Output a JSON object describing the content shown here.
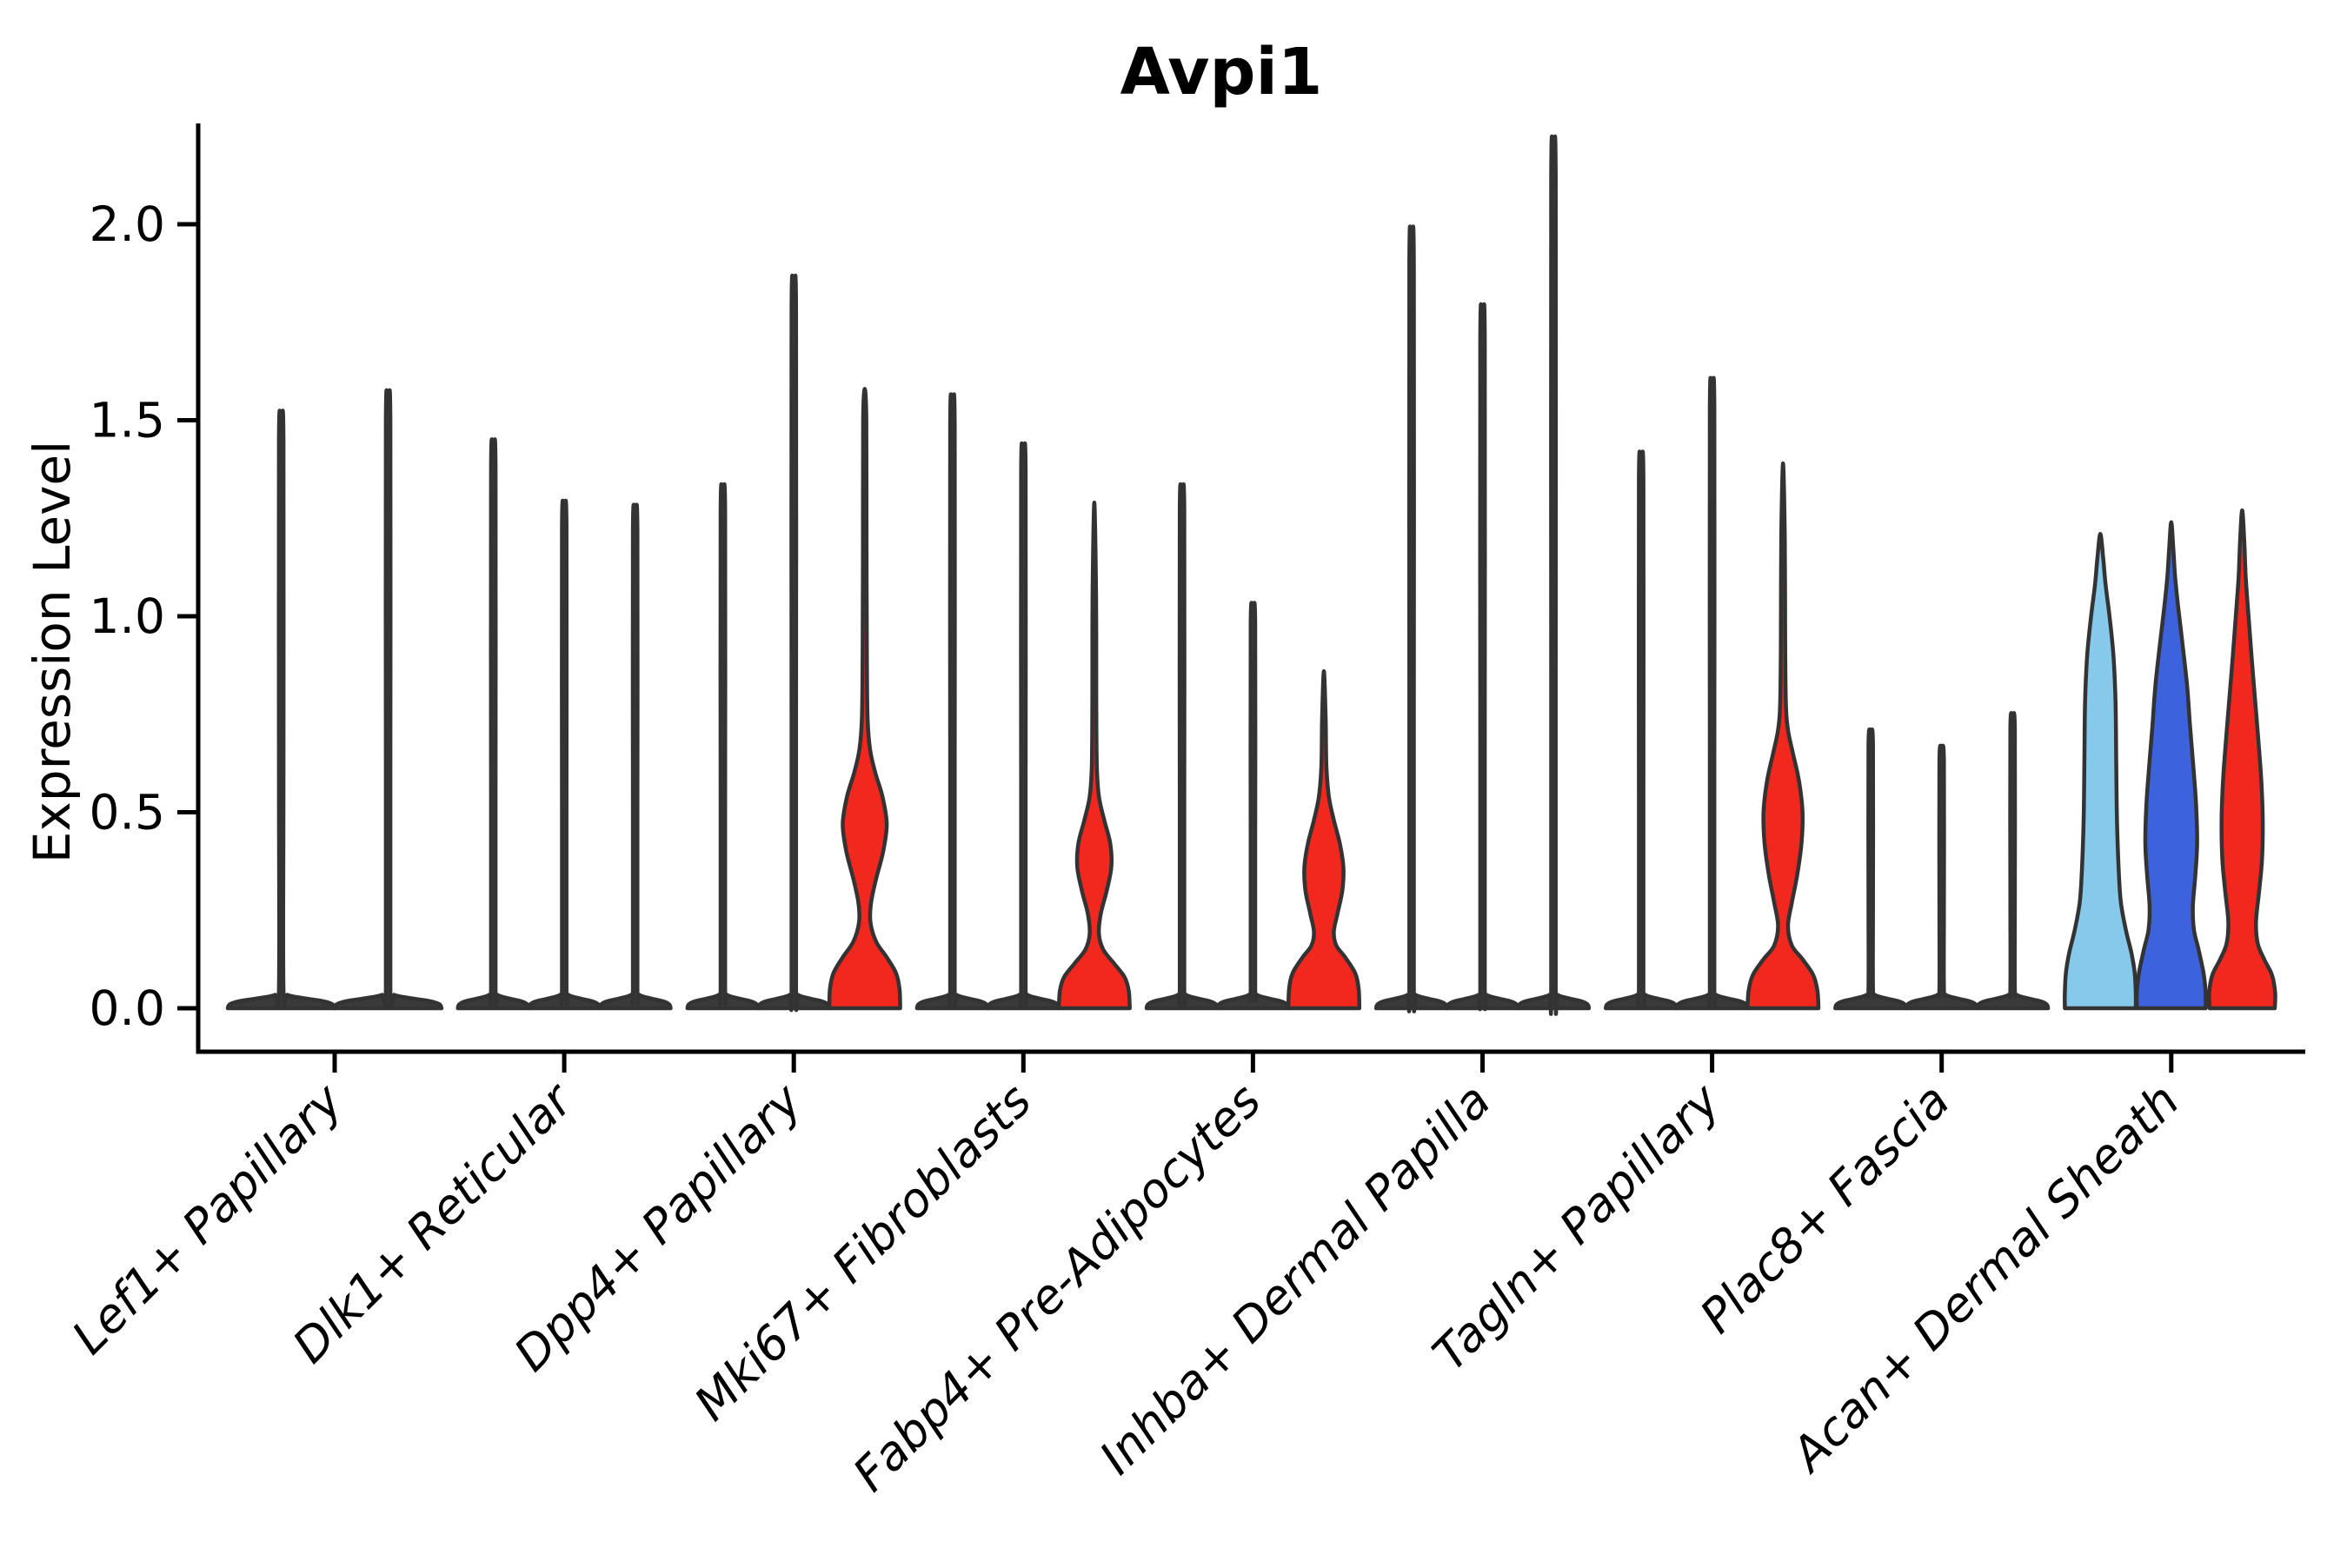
{
  "chart_data": {
    "type": "violin",
    "title": "Avpi1",
    "ylabel": "Expression Level",
    "xlabel": "",
    "grid": false,
    "legend": "none",
    "ylim": [
      -0.11,
      2.26
    ],
    "yticks": [
      {
        "label": "0.0",
        "value": 0.0
      },
      {
        "label": "0.5",
        "value": 0.5
      },
      {
        "label": "1.0",
        "value": 1.0
      },
      {
        "label": "1.5",
        "value": 1.5
      },
      {
        "label": "2.0",
        "value": 2.0
      }
    ],
    "palette": {
      "cond1": "#87C9EA",
      "cond2": "#3D63DC",
      "cond3": "#F2271E",
      "outline": "#333333",
      "axis": "#000000"
    },
    "categories": [
      {
        "label": "Lef1+ Papillary",
        "violins": [
          {
            "color": "cond1",
            "kind": "spike",
            "max": 1.48
          },
          {
            "color": "cond2",
            "kind": "spike",
            "max": 1.53
          }
        ]
      },
      {
        "label": "Dlk1+ Reticular",
        "violins": [
          {
            "color": "cond1",
            "kind": "spike",
            "max": 1.41
          },
          {
            "color": "cond2",
            "kind": "spike",
            "max": 1.26
          },
          {
            "color": "cond3",
            "kind": "spike",
            "max": 1.25
          }
        ]
      },
      {
        "label": "Dpp4+ Papillary",
        "violins": [
          {
            "color": "cond1",
            "kind": "spike",
            "max": 1.3
          },
          {
            "color": "cond2",
            "kind": "spike",
            "max": 1.81
          },
          {
            "color": "cond3",
            "kind": "shaped",
            "max": 1.58,
            "profile": [
              [
                0,
                1.0
              ],
              [
                0.05,
                0.98
              ],
              [
                0.09,
                0.88
              ],
              [
                0.13,
                0.62
              ],
              [
                0.17,
                0.32
              ],
              [
                0.22,
                0.16
              ],
              [
                0.27,
                0.18
              ],
              [
                0.33,
                0.32
              ],
              [
                0.4,
                0.52
              ],
              [
                0.47,
                0.62
              ],
              [
                0.54,
                0.5
              ],
              [
                0.6,
                0.3
              ],
              [
                0.66,
                0.15
              ],
              [
                0.74,
                0.08
              ],
              [
                0.9,
                0.06
              ],
              [
                1.2,
                0.05
              ],
              [
                1.5,
                0.045
              ],
              [
                1.58,
                0
              ]
            ]
          }
        ]
      },
      {
        "label": "Mki67+ Fibroblasts",
        "violins": [
          {
            "color": "cond1",
            "kind": "spike",
            "max": 1.52
          },
          {
            "color": "cond2",
            "kind": "spike",
            "max": 1.4
          },
          {
            "color": "cond3",
            "kind": "shaped",
            "max": 1.29,
            "profile": [
              [
                0,
                1.0
              ],
              [
                0.045,
                0.97
              ],
              [
                0.08,
                0.85
              ],
              [
                0.115,
                0.55
              ],
              [
                0.15,
                0.25
              ],
              [
                0.19,
                0.13
              ],
              [
                0.24,
                0.18
              ],
              [
                0.3,
                0.35
              ],
              [
                0.36,
                0.48
              ],
              [
                0.42,
                0.45
              ],
              [
                0.48,
                0.28
              ],
              [
                0.54,
                0.13
              ],
              [
                0.62,
                0.07
              ],
              [
                0.8,
                0.055
              ],
              [
                1.05,
                0.05
              ],
              [
                1.29,
                0
              ]
            ]
          }
        ]
      },
      {
        "label": "Fabp4+ Pre-Adipocytes",
        "violins": [
          {
            "color": "cond1",
            "kind": "spike",
            "max": 1.3
          },
          {
            "color": "cond2",
            "kind": "spike",
            "max": 1.01
          },
          {
            "color": "cond3",
            "kind": "shaped",
            "max": 0.86,
            "profile": [
              [
                0,
                1.0
              ],
              [
                0.05,
                0.98
              ],
              [
                0.09,
                0.88
              ],
              [
                0.13,
                0.6
              ],
              [
                0.16,
                0.35
              ],
              [
                0.195,
                0.28
              ],
              [
                0.24,
                0.38
              ],
              [
                0.3,
                0.52
              ],
              [
                0.36,
                0.55
              ],
              [
                0.42,
                0.45
              ],
              [
                0.48,
                0.28
              ],
              [
                0.54,
                0.14
              ],
              [
                0.62,
                0.07
              ],
              [
                0.74,
                0.05
              ],
              [
                0.86,
                0
              ]
            ]
          }
        ]
      },
      {
        "label": "Inhba+ Dermal Papilla",
        "violins": [
          {
            "color": "cond1",
            "kind": "spike",
            "max": 1.93
          },
          {
            "color": "cond2",
            "kind": "spike",
            "max": 1.74
          },
          {
            "color": "cond3",
            "kind": "spike",
            "max": 2.15
          }
        ]
      },
      {
        "label": "Tagln+ Papillary",
        "violins": [
          {
            "color": "cond1",
            "kind": "spike",
            "max": 1.38
          },
          {
            "color": "cond2",
            "kind": "spike",
            "max": 1.56
          },
          {
            "color": "cond3",
            "kind": "shaped",
            "max": 1.39,
            "profile": [
              [
                0,
                1.0
              ],
              [
                0.045,
                0.97
              ],
              [
                0.085,
                0.85
              ],
              [
                0.125,
                0.55
              ],
              [
                0.16,
                0.25
              ],
              [
                0.21,
                0.14
              ],
              [
                0.27,
                0.25
              ],
              [
                0.34,
                0.4
              ],
              [
                0.42,
                0.52
              ],
              [
                0.5,
                0.55
              ],
              [
                0.58,
                0.45
              ],
              [
                0.65,
                0.28
              ],
              [
                0.71,
                0.14
              ],
              [
                0.78,
                0.08
              ],
              [
                0.95,
                0.06
              ],
              [
                1.2,
                0.05
              ],
              [
                1.39,
                0
              ]
            ]
          }
        ]
      },
      {
        "label": "Plac8+ Fascia",
        "violins": [
          {
            "color": "cond1",
            "kind": "spike",
            "max": 0.7
          },
          {
            "color": "cond2",
            "kind": "spike",
            "max": 0.66
          },
          {
            "color": "cond3",
            "kind": "spike",
            "max": 0.74
          }
        ]
      },
      {
        "label": "Acan+ Dermal Sheath",
        "violins": [
          {
            "color": "cond1",
            "kind": "shaped",
            "max": 1.21,
            "profile": [
              [
                0,
                1.0
              ],
              [
                0.04,
                1.0
              ],
              [
                0.09,
                0.97
              ],
              [
                0.14,
                0.88
              ],
              [
                0.2,
                0.72
              ],
              [
                0.27,
                0.58
              ],
              [
                0.35,
                0.52
              ],
              [
                0.48,
                0.47
              ],
              [
                0.62,
                0.45
              ],
              [
                0.78,
                0.43
              ],
              [
                0.9,
                0.37
              ],
              [
                1.0,
                0.26
              ],
              [
                1.08,
                0.15
              ],
              [
                1.15,
                0.08
              ],
              [
                1.21,
                0
              ]
            ]
          },
          {
            "color": "cond2",
            "kind": "shaped",
            "max": 1.24,
            "profile": [
              [
                0,
                0.97
              ],
              [
                0.04,
                0.97
              ],
              [
                0.09,
                0.91
              ],
              [
                0.15,
                0.77
              ],
              [
                0.2,
                0.64
              ],
              [
                0.26,
                0.61
              ],
              [
                0.34,
                0.68
              ],
              [
                0.42,
                0.73
              ],
              [
                0.52,
                0.7
              ],
              [
                0.62,
                0.62
              ],
              [
                0.72,
                0.53
              ],
              [
                0.82,
                0.45
              ],
              [
                0.92,
                0.33
              ],
              [
                1.02,
                0.2
              ],
              [
                1.1,
                0.11
              ],
              [
                1.17,
                0.06
              ],
              [
                1.24,
                0
              ]
            ]
          },
          {
            "color": "cond3",
            "kind": "shaped",
            "max": 1.27,
            "profile": [
              [
                0,
                0.92
              ],
              [
                0.04,
                0.93
              ],
              [
                0.085,
                0.84
              ],
              [
                0.125,
                0.62
              ],
              [
                0.165,
                0.44
              ],
              [
                0.22,
                0.39
              ],
              [
                0.3,
                0.48
              ],
              [
                0.38,
                0.56
              ],
              [
                0.48,
                0.58
              ],
              [
                0.58,
                0.54
              ],
              [
                0.68,
                0.46
              ],
              [
                0.78,
                0.37
              ],
              [
                0.88,
                0.28
              ],
              [
                1.0,
                0.18
              ],
              [
                1.1,
                0.1
              ],
              [
                1.19,
                0.06
              ],
              [
                1.27,
                0
              ]
            ]
          }
        ]
      }
    ]
  }
}
